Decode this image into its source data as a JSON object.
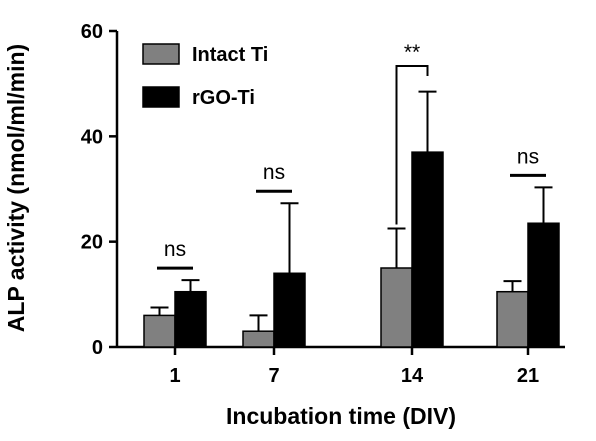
{
  "chart_data": {
    "type": "bar",
    "xlabel": "Incubation time (DIV)",
    "ylabel": "ALP activity (nmol/ml/min)",
    "ylim": [
      0,
      60
    ],
    "yticks": [
      "0",
      "20",
      "40",
      "60"
    ],
    "categories": [
      "1",
      "7",
      "14",
      "21"
    ],
    "series": [
      {
        "name": "Intact Ti",
        "color": "#808080",
        "values": [
          6,
          3,
          15,
          10.5
        ],
        "errors": [
          1.5,
          3,
          7.5,
          2
        ]
      },
      {
        "name": "rGO-Ti",
        "color": "#000000",
        "values": [
          10.5,
          14,
          37,
          23.5
        ],
        "errors": [
          2.2,
          13.3,
          11.5,
          6.8
        ]
      }
    ],
    "annotations": [
      "ns",
      "ns",
      "**",
      "ns"
    ],
    "legend_position": "top-left",
    "grid": false
  }
}
